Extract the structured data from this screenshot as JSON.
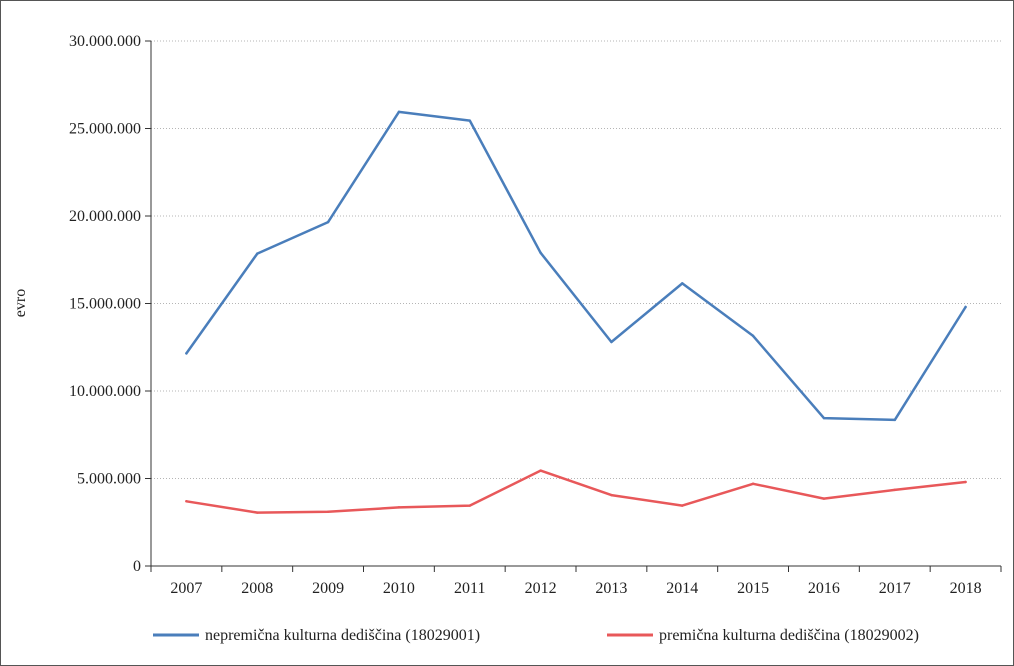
{
  "chart_data": {
    "type": "line",
    "title": "",
    "xlabel": "",
    "ylabel": "evro",
    "ylim": [
      0,
      30000000
    ],
    "yticks": [
      0,
      5000000,
      10000000,
      15000000,
      20000000,
      25000000,
      30000000
    ],
    "ytick_labels": [
      "0",
      "5.000.000",
      "10.000.000",
      "15.000.000",
      "20.000.000",
      "25.000.000",
      "30.000.000"
    ],
    "grid": "horizontal dotted",
    "legend_position": "bottom",
    "x": [
      "2007",
      "2008",
      "2009",
      "2010",
      "2011",
      "2012",
      "2013",
      "2014",
      "2015",
      "2016",
      "2017",
      "2018"
    ],
    "series": [
      {
        "name": "nepremična kulturna dediščina (18029001)",
        "color": "#4a7ebb",
        "values": [
          12150000,
          17850000,
          19650000,
          25950000,
          25450000,
          17900000,
          12800000,
          16150000,
          13150000,
          8450000,
          8350000,
          14800000
        ]
      },
      {
        "name": "premična kulturna dediščina (18029002)",
        "color": "#e8585a",
        "values": [
          3700000,
          3050000,
          3100000,
          3350000,
          3450000,
          5450000,
          4050000,
          3450000,
          4700000,
          3850000,
          4350000,
          4800000
        ]
      }
    ]
  }
}
